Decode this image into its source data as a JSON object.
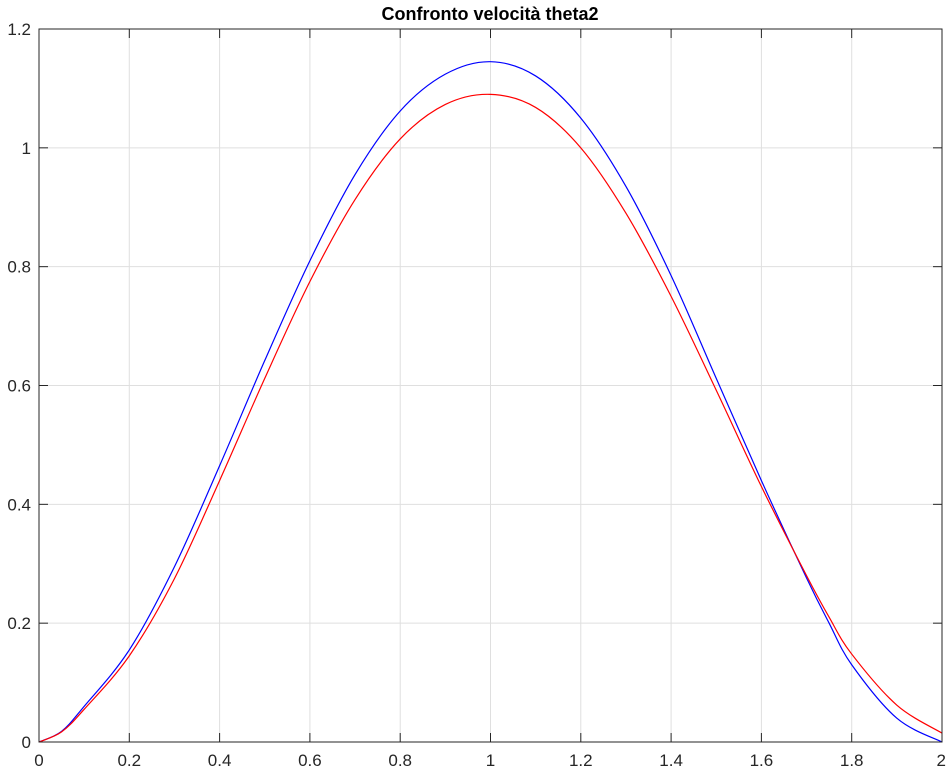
{
  "chart_data": {
    "type": "line",
    "title": "Confronto velocità theta2",
    "xlabel": "",
    "ylabel": "",
    "xlim": [
      0,
      2
    ],
    "ylim": [
      0,
      1.2
    ],
    "grid": true,
    "x_ticks": [
      "0",
      "0.2",
      "0.4",
      "0.6",
      "0.8",
      "1",
      "1.2",
      "1.4",
      "1.6",
      "1.8",
      "2"
    ],
    "y_ticks": [
      "0",
      "0.2",
      "0.4",
      "0.6",
      "0.8",
      "1",
      "1.2"
    ],
    "x": [
      0,
      0.05,
      0.1,
      0.2,
      0.3,
      0.4,
      0.5,
      0.6,
      0.7,
      0.8,
      0.9,
      1.0,
      1.1,
      1.2,
      1.3,
      1.4,
      1.5,
      1.6,
      1.7,
      1.75,
      1.8,
      1.9,
      2.0
    ],
    "series": [
      {
        "color": "#0000ff",
        "values": [
          0.0,
          0.018,
          0.06,
          0.155,
          0.295,
          0.465,
          0.642,
          0.81,
          0.955,
          1.062,
          1.124,
          1.145,
          1.121,
          1.05,
          0.935,
          0.785,
          0.612,
          0.44,
          0.276,
          0.2,
          0.13,
          0.04,
          0.0
        ]
      },
      {
        "color": "#ff0000",
        "values": [
          0.0,
          0.017,
          0.055,
          0.145,
          0.275,
          0.44,
          0.612,
          0.775,
          0.913,
          1.015,
          1.073,
          1.09,
          1.068,
          1.0,
          0.89,
          0.75,
          0.592,
          0.43,
          0.28,
          0.21,
          0.148,
          0.062,
          0.015
        ]
      }
    ]
  }
}
